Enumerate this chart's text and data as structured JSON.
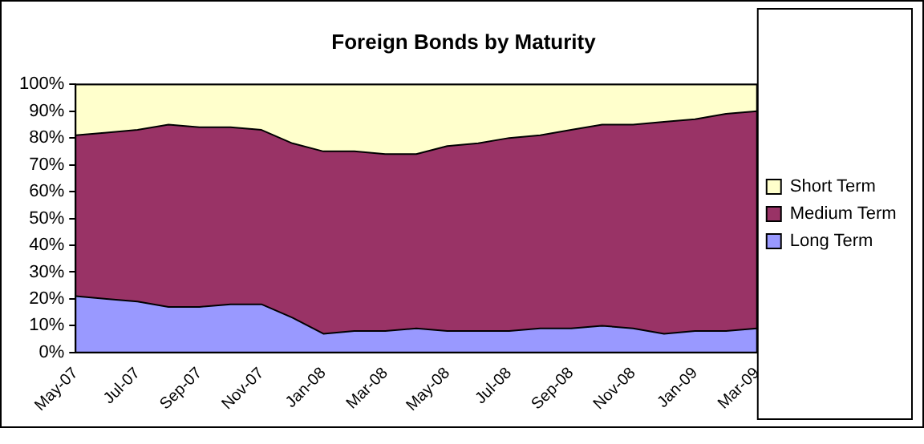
{
  "chart_data": {
    "type": "area",
    "title": "Foreign Bonds by Maturity",
    "categories": [
      "May-07",
      null,
      "Jul-07",
      null,
      "Sep-07",
      null,
      "Nov-07",
      null,
      "Jan-08",
      null,
      "Mar-08",
      null,
      "May-08",
      null,
      "Jul-08",
      null,
      "Sep-08",
      null,
      "Nov-08",
      null,
      "Jan-09",
      null,
      "Mar-09"
    ],
    "series": [
      {
        "name": "Long Term",
        "color": "#9999ff",
        "values": [
          21,
          20,
          19,
          17,
          17,
          18,
          18,
          13,
          7,
          8,
          8,
          9,
          8,
          8,
          8,
          9,
          9,
          10,
          9,
          7,
          8,
          8,
          9
        ]
      },
      {
        "name": "Medium Term",
        "color": "#993366",
        "values": [
          60,
          62,
          64,
          68,
          67,
          66,
          65,
          65,
          68,
          67,
          66,
          65,
          69,
          70,
          72,
          72,
          74,
          75,
          76,
          79,
          79,
          81,
          81
        ]
      },
      {
        "name": "Short Term",
        "color": "#ffffcc",
        "values": [
          19,
          18,
          17,
          15,
          16,
          16,
          17,
          22,
          25,
          25,
          26,
          26,
          23,
          22,
          20,
          19,
          17,
          15,
          15,
          14,
          13,
          11,
          10
        ]
      }
    ],
    "stacked": true,
    "ylim": [
      0,
      100
    ],
    "yticks": [
      {
        "value": 0,
        "label": "0%"
      },
      {
        "value": 10,
        "label": "10%"
      },
      {
        "value": 20,
        "label": "20%"
      },
      {
        "value": 30,
        "label": "30%"
      },
      {
        "value": 40,
        "label": "40%"
      },
      {
        "value": 50,
        "label": "50%"
      },
      {
        "value": 60,
        "label": "60%"
      },
      {
        "value": 70,
        "label": "70%"
      },
      {
        "value": 80,
        "label": "80%"
      },
      {
        "value": 90,
        "label": "90%"
      },
      {
        "value": 100,
        "label": "100%"
      }
    ],
    "grid": false,
    "legend": "right"
  }
}
